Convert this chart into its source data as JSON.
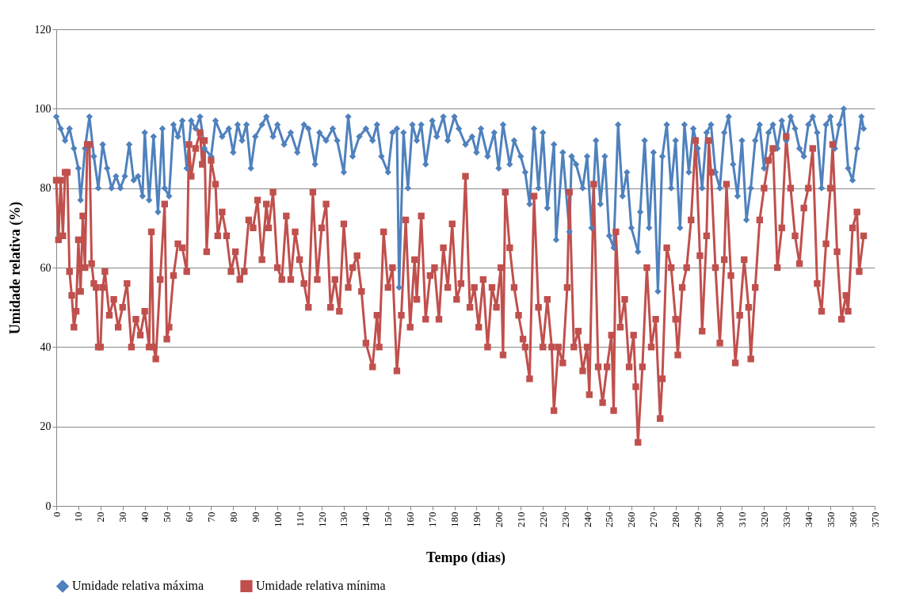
{
  "chart_data": {
    "type": "line",
    "xlabel": "Tempo (dias)",
    "ylabel": "Umidade relativa (%)",
    "xlim": [
      0,
      370
    ],
    "xticks": [
      0,
      10,
      20,
      30,
      40,
      50,
      60,
      70,
      80,
      90,
      100,
      110,
      120,
      130,
      140,
      150,
      160,
      170,
      180,
      190,
      200,
      210,
      220,
      230,
      240,
      250,
      260,
      270,
      280,
      290,
      300,
      310,
      320,
      330,
      340,
      350,
      360,
      370
    ],
    "ylim": [
      0,
      120
    ],
    "yticks": [
      0,
      20,
      40,
      60,
      80,
      100,
      120
    ],
    "grid": "y",
    "legend": "bottom",
    "line_style": "solid",
    "series": [
      {
        "name": "Umidade relativa máxima",
        "color": "#4f81bd",
        "marker": "diamond",
        "x": [
          0,
          2,
          4,
          6,
          8,
          10,
          11,
          13,
          15,
          17,
          19,
          21,
          23,
          25,
          27,
          29,
          31,
          33,
          35,
          37,
          39,
          40,
          42,
          44,
          46,
          48,
          49,
          51,
          53,
          55,
          57,
          59,
          61,
          63,
          65,
          67,
          70,
          72,
          75,
          78,
          80,
          82,
          84,
          86,
          88,
          90,
          93,
          95,
          98,
          100,
          103,
          106,
          109,
          112,
          114,
          117,
          119,
          122,
          125,
          127,
          130,
          132,
          134,
          137,
          140,
          143,
          145,
          147,
          150,
          152,
          154,
          155,
          157,
          159,
          161,
          163,
          165,
          167,
          170,
          172,
          175,
          177,
          180,
          182,
          185,
          188,
          190,
          192,
          195,
          198,
          200,
          202,
          205,
          207,
          210,
          212,
          214,
          216,
          218,
          220,
          222,
          225,
          226,
          229,
          232,
          233,
          235,
          238,
          240,
          242,
          244,
          246,
          248,
          250,
          252,
          254,
          256,
          258,
          260,
          263,
          264,
          266,
          268,
          270,
          272,
          274,
          276,
          278,
          280,
          282,
          284,
          286,
          288,
          290,
          292,
          294,
          296,
          298,
          300,
          302,
          304,
          306,
          308,
          310,
          312,
          314,
          316,
          318,
          320,
          322,
          324,
          326,
          328,
          330,
          332,
          334,
          336,
          338,
          340,
          342,
          344,
          346,
          348,
          350,
          352,
          354,
          356,
          358,
          360,
          362,
          364,
          365
        ],
        "values": [
          98,
          95,
          92,
          95,
          90,
          85,
          77,
          90,
          98,
          88,
          80,
          91,
          85,
          80,
          83,
          80,
          83,
          91,
          82,
          83,
          78,
          94,
          77,
          93,
          74,
          95,
          80,
          78,
          96,
          93,
          97,
          85,
          97,
          95,
          98,
          90,
          88,
          97,
          93,
          95,
          89,
          96,
          92,
          96,
          85,
          93,
          96,
          98,
          93,
          96,
          91,
          94,
          89,
          96,
          95,
          86,
          94,
          92,
          95,
          92,
          84,
          98,
          88,
          93,
          95,
          92,
          96,
          88,
          84,
          94,
          95,
          55,
          94,
          80,
          96,
          92,
          96,
          86,
          97,
          93,
          98,
          92,
          98,
          95,
          91,
          93,
          89,
          95,
          88,
          94,
          85,
          96,
          86,
          92,
          88,
          84,
          76,
          95,
          80,
          94,
          75,
          91,
          67,
          89,
          69,
          88,
          86,
          80,
          88,
          70,
          92,
          76,
          88,
          68,
          65,
          96,
          78,
          84,
          70,
          64,
          74,
          92,
          70,
          89,
          54,
          88,
          96,
          80,
          92,
          70,
          96,
          84,
          95,
          90,
          80,
          94,
          96,
          84,
          80,
          94,
          98,
          86,
          78,
          92,
          72,
          80,
          92,
          96,
          85,
          94,
          96,
          90,
          97,
          92,
          98,
          95,
          90,
          88,
          96,
          98,
          94,
          80,
          96,
          98,
          90,
          96,
          100,
          85,
          82,
          90,
          98,
          95
        ]
      },
      {
        "name": "Umidade relativa mínima",
        "color": "#c0504d",
        "marker": "square",
        "x": [
          0,
          1,
          2,
          3,
          4,
          5,
          6,
          7,
          8,
          9,
          10,
          11,
          12,
          13,
          14,
          15,
          16,
          17,
          18,
          19,
          20,
          21,
          22,
          24,
          26,
          28,
          30,
          32,
          34,
          36,
          38,
          40,
          42,
          43,
          44,
          45,
          47,
          49,
          50,
          51,
          53,
          55,
          57,
          59,
          60,
          61,
          63,
          65,
          66,
          67,
          68,
          70,
          72,
          73,
          75,
          77,
          79,
          81,
          83,
          85,
          87,
          89,
          91,
          93,
          95,
          96,
          98,
          100,
          102,
          104,
          106,
          108,
          110,
          112,
          114,
          116,
          118,
          120,
          122,
          124,
          126,
          128,
          130,
          132,
          134,
          136,
          138,
          140,
          143,
          145,
          146,
          148,
          150,
          152,
          154,
          156,
          158,
          160,
          162,
          163,
          165,
          167,
          169,
          171,
          173,
          175,
          177,
          179,
          181,
          183,
          185,
          187,
          189,
          191,
          193,
          195,
          197,
          199,
          201,
          202,
          203,
          205,
          207,
          209,
          211,
          212,
          214,
          216,
          218,
          220,
          222,
          224,
          225,
          227,
          229,
          231,
          232,
          234,
          236,
          238,
          240,
          241,
          243,
          245,
          247,
          249,
          251,
          252,
          253,
          255,
          257,
          259,
          261,
          262,
          263,
          265,
          267,
          269,
          271,
          273,
          274,
          276,
          278,
          280,
          281,
          283,
          285,
          287,
          289,
          291,
          292,
          294,
          295,
          296,
          298,
          300,
          302,
          303,
          305,
          307,
          309,
          311,
          313,
          314,
          316,
          318,
          320,
          322,
          324,
          326,
          328,
          330,
          332,
          334,
          336,
          338,
          340,
          342,
          344,
          346,
          348,
          350,
          351,
          353,
          355,
          357,
          358,
          360,
          362,
          363,
          365
        ],
        "values": [
          82,
          67,
          82,
          68,
          84,
          84,
          59,
          53,
          45,
          49,
          67,
          54,
          73,
          60,
          91,
          91,
          61,
          56,
          55,
          40,
          40,
          55,
          59,
          48,
          52,
          45,
          50,
          56,
          40,
          47,
          43,
          49,
          40,
          69,
          40,
          37,
          57,
          76,
          42,
          45,
          58,
          66,
          65,
          59,
          91,
          83,
          90,
          94,
          86,
          92,
          64,
          87,
          81,
          68,
          74,
          68,
          59,
          64,
          57,
          59,
          72,
          70,
          77,
          62,
          76,
          70,
          79,
          60,
          57,
          73,
          57,
          69,
          62,
          56,
          50,
          79,
          57,
          70,
          76,
          50,
          57,
          49,
          71,
          55,
          60,
          63,
          54,
          41,
          35,
          48,
          40,
          69,
          55,
          60,
          34,
          48,
          72,
          45,
          62,
          52,
          73,
          47,
          58,
          60,
          47,
          65,
          55,
          71,
          52,
          56,
          83,
          50,
          55,
          45,
          57,
          40,
          55,
          50,
          60,
          38,
          79,
          65,
          55,
          48,
          42,
          40,
          32,
          78,
          50,
          40,
          52,
          40,
          24,
          40,
          36,
          55,
          79,
          40,
          44,
          34,
          40,
          28,
          81,
          35,
          26,
          35,
          43,
          24,
          69,
          45,
          52,
          35,
          43,
          30,
          16,
          35,
          60,
          40,
          47,
          22,
          32,
          65,
          60,
          47,
          38,
          55,
          60,
          72,
          92,
          63,
          44,
          68,
          92,
          84,
          60,
          41,
          62,
          81,
          58,
          36,
          48,
          62,
          50,
          37,
          55,
          72,
          80,
          87,
          90,
          60,
          70,
          93,
          80,
          68,
          61,
          75,
          80,
          90,
          56,
          49,
          66,
          80,
          91,
          64,
          47,
          53,
          49,
          70,
          74,
          59,
          68
        ]
      }
    ]
  }
}
